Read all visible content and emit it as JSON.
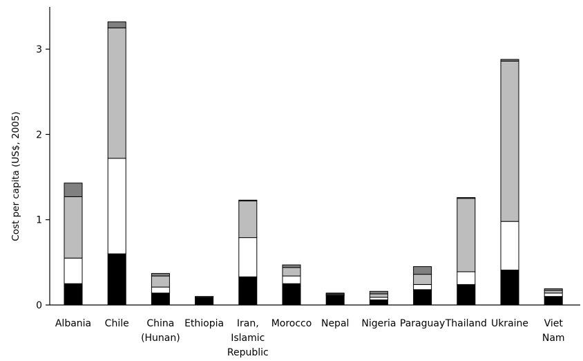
{
  "chart_data": {
    "type": "bar",
    "stacked": true,
    "title": "",
    "xlabel": "",
    "ylabel": "Cost per capita (US$, 2005)",
    "ylim": [
      0,
      3.45
    ],
    "yticks": [
      0,
      1,
      2,
      3
    ],
    "grid": false,
    "categories": [
      [
        "Albania"
      ],
      [
        "Chile"
      ],
      [
        "China",
        "(Hunan)"
      ],
      [
        "Ethiopia"
      ],
      [
        "Iran,",
        "Islamic",
        "Republic"
      ],
      [
        "Morocco"
      ],
      [
        "Nepal"
      ],
      [
        "Nigeria"
      ],
      [
        "Paraguay"
      ],
      [
        "Thailand"
      ],
      [
        "Ukraine"
      ],
      [
        "Viet",
        "Nam"
      ]
    ],
    "series": [
      {
        "color": "#000000",
        "values": [
          0.25,
          0.6,
          0.14,
          0.09,
          0.33,
          0.25,
          0.11,
          0.06,
          0.18,
          0.24,
          0.41,
          0.1
        ]
      },
      {
        "color": "#ffffff",
        "values": [
          0.3,
          1.12,
          0.07,
          0.0,
          0.46,
          0.09,
          0.01,
          0.03,
          0.06,
          0.15,
          0.57,
          0.04
        ]
      },
      {
        "color": "#bdbdbd",
        "values": [
          0.72,
          1.53,
          0.13,
          0.0,
          0.43,
          0.1,
          0.01,
          0.04,
          0.12,
          0.86,
          1.88,
          0.03
        ]
      },
      {
        "color": "#808080",
        "values": [
          0.16,
          0.07,
          0.03,
          0.01,
          0.01,
          0.03,
          0.01,
          0.03,
          0.09,
          0.01,
          0.02,
          0.02
        ]
      }
    ]
  }
}
